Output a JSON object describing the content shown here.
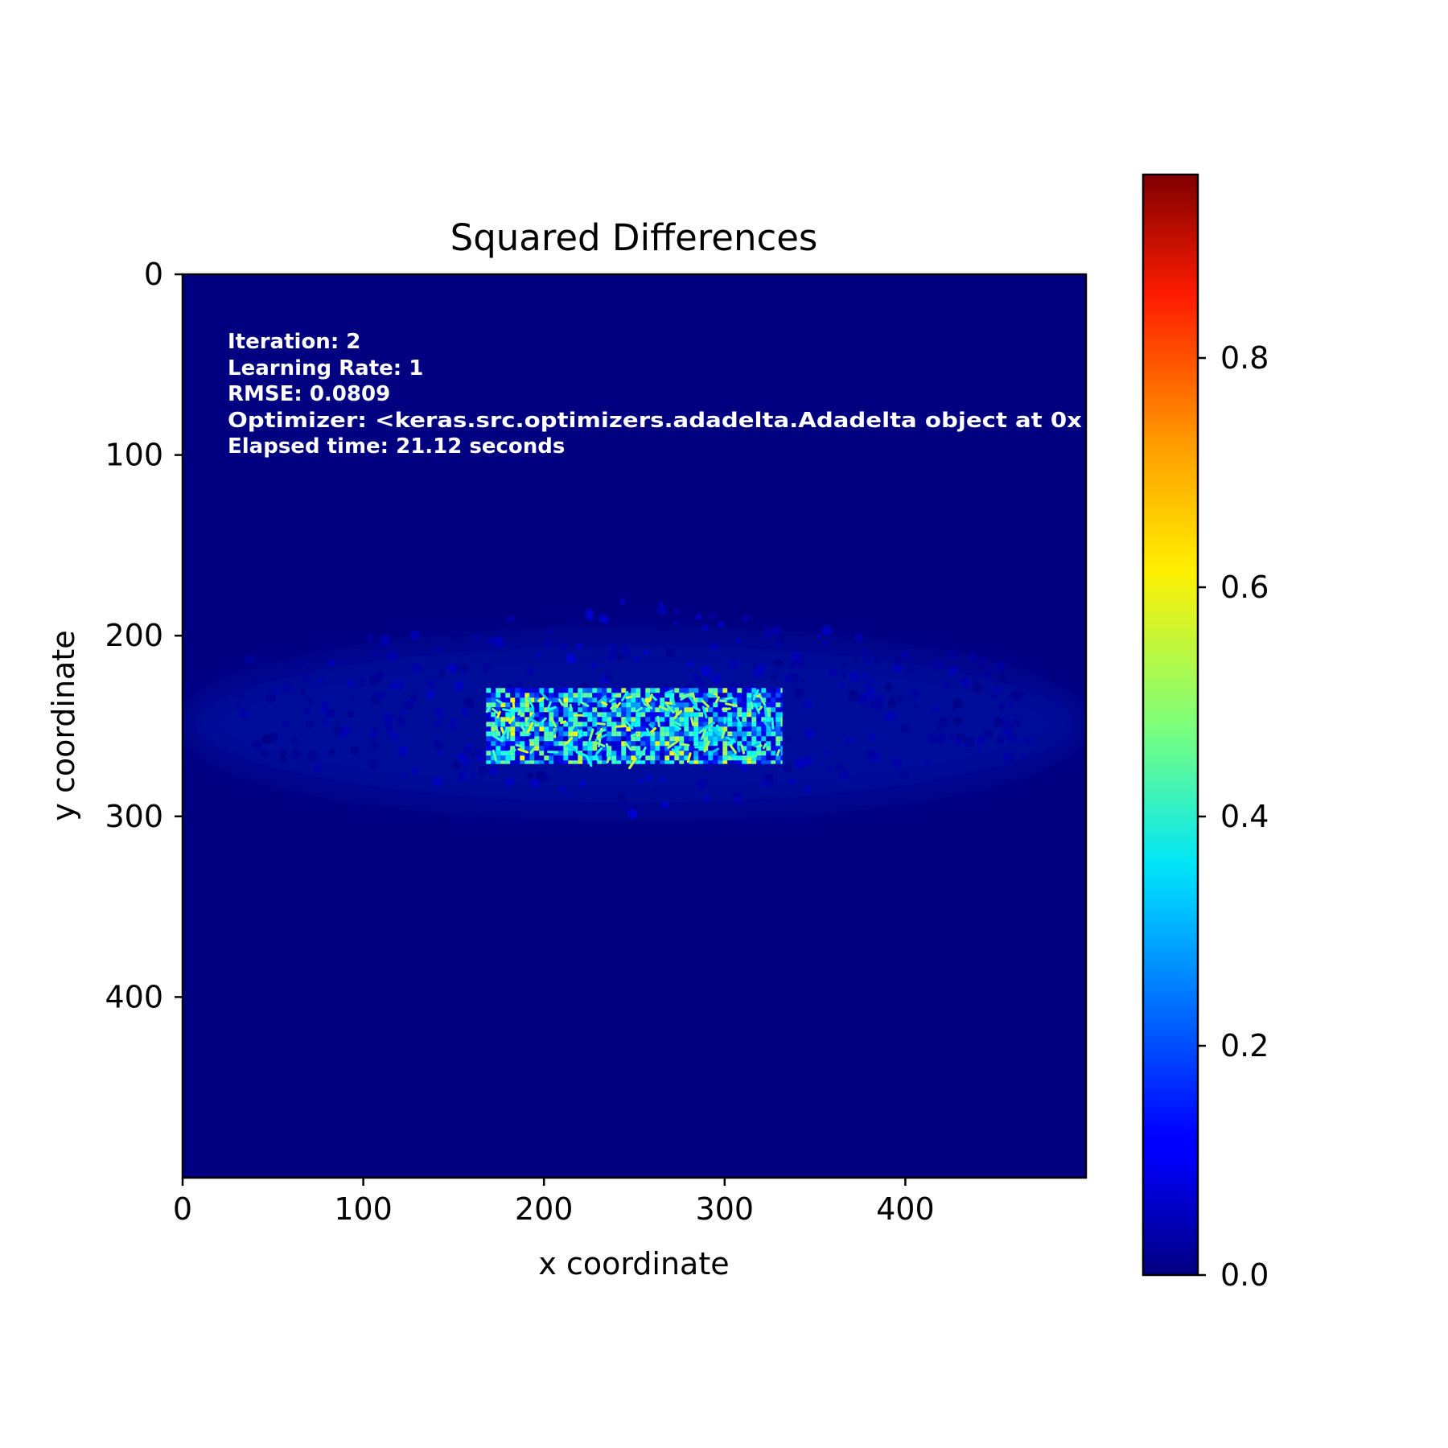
{
  "chart_data": {
    "type": "heatmap",
    "title": "Squared Differences",
    "xlabel": "x coordinate",
    "ylabel": "y coordinate",
    "xlim": [
      0,
      500
    ],
    "ylim": [
      500,
      0
    ],
    "x_ticks": [
      0,
      100,
      200,
      300,
      400
    ],
    "y_ticks": [
      0,
      100,
      200,
      300,
      400
    ],
    "colormap": "jet",
    "colorbar": {
      "range": [
        0,
        0.96
      ],
      "ticks": [
        "0.0",
        "0.2",
        "0.4",
        "0.6",
        "0.8"
      ],
      "tick_values": [
        0,
        0.2,
        0.4,
        0.6,
        0.8
      ]
    },
    "background_value": 0.0,
    "regions": [
      {
        "name": "error-block",
        "x": [
          168,
          332
        ],
        "y": [
          229,
          271
        ],
        "value_range": [
          0.05,
          0.6
        ]
      },
      {
        "name": "faint-halo",
        "x": [
          0,
          500
        ],
        "y": [
          180,
          300
        ],
        "value_range": [
          0.0,
          0.12
        ]
      }
    ],
    "annotations": [
      "Iteration: 2",
      "Learning Rate: 1",
      "RMSE: 0.0809",
      "Optimizer: <keras.src.optimizers.adadelta.Adadelta object at 0x",
      "Elapsed time: 21.12 seconds"
    ]
  }
}
